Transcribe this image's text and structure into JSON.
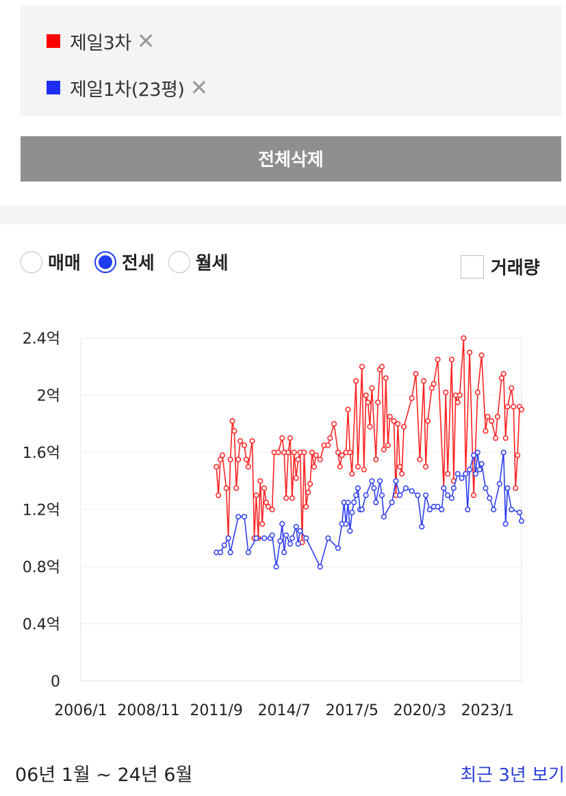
{
  "compare_list": {
    "items": [
      {
        "label": "제일3차",
        "color": "#ff0000",
        "remove_icon": "close-icon"
      },
      {
        "label": "제일1차(23평)",
        "color": "#1e2ef0",
        "remove_icon": "close-icon"
      }
    ],
    "remove_symbol": "✕"
  },
  "delete_all_label": "전체삭제",
  "trade_types": {
    "options": [
      "매매",
      "전세",
      "월세"
    ],
    "selected": "전세"
  },
  "volume_toggle": {
    "label": "거래량",
    "checked": false
  },
  "chart_data": {
    "type": "line",
    "title": "",
    "xlabel": "",
    "ylabel": "",
    "x_ticks": [
      "2006/1",
      "2008/11",
      "2011/9",
      "2014/7",
      "2017/5",
      "2020/3",
      "2023/1"
    ],
    "y_ticks": [
      "0",
      "0.4억",
      "0.8억",
      "1.2억",
      "1.6억",
      "2억",
      "2.4억"
    ],
    "ylim": [
      0,
      2.4
    ],
    "xlim": [
      "2006/1",
      "2024/6"
    ],
    "grid": true,
    "series": [
      {
        "name": "제일3차",
        "color": "#ff2020",
        "points": [
          [
            "2011/9",
            1.5
          ],
          [
            "2011/10",
            1.3
          ],
          [
            "2011/11",
            1.55
          ],
          [
            "2011/12",
            1.58
          ],
          [
            "2012/2",
            1.35
          ],
          [
            "2012/3",
            1.0
          ],
          [
            "2012/4",
            1.55
          ],
          [
            "2012/5",
            1.82
          ],
          [
            "2012/6",
            1.75
          ],
          [
            "2012/7",
            1.35
          ],
          [
            "2012/8",
            1.55
          ],
          [
            "2012/9",
            1.68
          ],
          [
            "2012/11",
            1.65
          ],
          [
            "2012/12",
            1.55
          ],
          [
            "2013/1",
            1.5
          ],
          [
            "2013/3",
            1.68
          ],
          [
            "2013/4",
            1.0
          ],
          [
            "2013/5",
            1.3
          ],
          [
            "2013/6",
            1.0
          ],
          [
            "2013/7",
            1.4
          ],
          [
            "2013/8",
            1.1
          ],
          [
            "2013/9",
            1.35
          ],
          [
            "2013/10",
            1.25
          ],
          [
            "2013/11",
            1.22
          ],
          [
            "2014/1",
            1.2
          ],
          [
            "2014/2",
            1.6
          ],
          [
            "2014/4",
            1.6
          ],
          [
            "2014/6",
            1.7
          ],
          [
            "2014/7",
            1.6
          ],
          [
            "2014/8",
            1.28
          ],
          [
            "2014/9",
            1.6
          ],
          [
            "2014/10",
            1.7
          ],
          [
            "2014/11",
            1.28
          ],
          [
            "2014/12",
            1.6
          ],
          [
            "2015/1",
            1.42
          ],
          [
            "2015/2",
            1.55
          ],
          [
            "2015/3",
            1.6
          ],
          [
            "2015/4",
            0.97
          ],
          [
            "2015/5",
            1.6
          ],
          [
            "2015/6",
            1.22
          ],
          [
            "2015/7",
            1.32
          ],
          [
            "2015/8",
            1.38
          ],
          [
            "2015/9",
            1.6
          ],
          [
            "2015/10",
            1.5
          ],
          [
            "2015/11",
            1.58
          ],
          [
            "2016/1",
            1.55
          ],
          [
            "2016/3",
            1.65
          ],
          [
            "2016/5",
            1.65
          ],
          [
            "2016/6",
            1.7
          ],
          [
            "2016/8",
            1.8
          ],
          [
            "2016/10",
            1.6
          ],
          [
            "2016/11",
            1.5
          ],
          [
            "2016/12",
            1.58
          ],
          [
            "2017/2",
            1.6
          ],
          [
            "2017/3",
            1.9
          ],
          [
            "2017/4",
            1.6
          ],
          [
            "2017/5",
            1.45
          ],
          [
            "2017/7",
            2.1
          ],
          [
            "2017/8",
            1.5
          ],
          [
            "2017/10",
            2.2
          ],
          [
            "2017/11",
            1.48
          ],
          [
            "2017/12",
            2.0
          ],
          [
            "2018/1",
            1.95
          ],
          [
            "2018/2",
            1.78
          ],
          [
            "2018/3",
            2.05
          ],
          [
            "2018/5",
            1.55
          ],
          [
            "2018/6",
            1.95
          ],
          [
            "2018/7",
            2.18
          ],
          [
            "2018/8",
            2.2
          ],
          [
            "2018/9",
            1.62
          ],
          [
            "2018/10",
            2.12
          ],
          [
            "2018/11",
            1.65
          ],
          [
            "2018/12",
            1.85
          ],
          [
            "2019/2",
            1.82
          ],
          [
            "2019/3",
            1.3
          ],
          [
            "2019/4",
            1.8
          ],
          [
            "2019/5",
            1.5
          ],
          [
            "2019/6",
            1.45
          ],
          [
            "2019/7",
            1.78
          ],
          [
            "2019/11",
            1.98
          ],
          [
            "2020/1",
            2.15
          ],
          [
            "2020/3",
            1.55
          ],
          [
            "2020/5",
            2.1
          ],
          [
            "2020/6",
            1.5
          ],
          [
            "2020/7",
            1.82
          ],
          [
            "2020/9",
            2.05
          ],
          [
            "2020/10",
            2.08
          ],
          [
            "2020/12",
            2.25
          ],
          [
            "2021/3",
            1.35
          ],
          [
            "2021/4",
            2.02
          ],
          [
            "2021/5",
            1.45
          ],
          [
            "2021/7",
            2.25
          ],
          [
            "2021/8",
            1.4
          ],
          [
            "2021/9",
            2.0
          ],
          [
            "2021/10",
            1.95
          ],
          [
            "2021/11",
            2.0
          ],
          [
            "2022/1",
            2.4
          ],
          [
            "2022/2",
            1.45
          ],
          [
            "2022/4",
            2.3
          ],
          [
            "2022/6",
            1.3
          ],
          [
            "2022/8",
            2.02
          ],
          [
            "2022/10",
            2.28
          ],
          [
            "2022/12",
            1.75
          ],
          [
            "2023/1",
            1.85
          ],
          [
            "2023/3",
            1.82
          ],
          [
            "2023/5",
            1.7
          ],
          [
            "2023/6",
            1.85
          ],
          [
            "2023/8",
            2.12
          ],
          [
            "2023/9",
            2.15
          ],
          [
            "2023/10",
            1.7
          ],
          [
            "2023/11",
            1.92
          ],
          [
            "2024/1",
            2.05
          ],
          [
            "2024/2",
            1.92
          ],
          [
            "2024/3",
            1.35
          ],
          [
            "2024/4",
            1.58
          ],
          [
            "2024/5",
            1.92
          ],
          [
            "2024/6",
            1.9
          ]
        ]
      },
      {
        "name": "제일1차(23평)",
        "color": "#2a3cf0",
        "points": [
          [
            "2011/9",
            0.9
          ],
          [
            "2011/11",
            0.9
          ],
          [
            "2012/1",
            0.95
          ],
          [
            "2012/3",
            1.0
          ],
          [
            "2012/4",
            0.9
          ],
          [
            "2012/8",
            1.15
          ],
          [
            "2012/11",
            1.15
          ],
          [
            "2013/1",
            0.9
          ],
          [
            "2013/5",
            1.0
          ],
          [
            "2013/9",
            1.0
          ],
          [
            "2013/12",
            1.0
          ],
          [
            "2014/1",
            1.02
          ],
          [
            "2014/3",
            0.8
          ],
          [
            "2014/5",
            0.98
          ],
          [
            "2014/6",
            1.1
          ],
          [
            "2014/7",
            0.9
          ],
          [
            "2014/8",
            1.02
          ],
          [
            "2014/10",
            0.96
          ],
          [
            "2014/11",
            1.0
          ],
          [
            "2015/1",
            1.08
          ],
          [
            "2015/2",
            0.96
          ],
          [
            "2015/3",
            1.05
          ],
          [
            "2015/6",
            1.0
          ],
          [
            "2016/1",
            0.8
          ],
          [
            "2016/5",
            1.0
          ],
          [
            "2016/10",
            0.93
          ],
          [
            "2016/12",
            1.1
          ],
          [
            "2017/1",
            1.25
          ],
          [
            "2017/2",
            1.1
          ],
          [
            "2017/3",
            1.25
          ],
          [
            "2017/4",
            1.05
          ],
          [
            "2017/5",
            1.18
          ],
          [
            "2017/6",
            1.25
          ],
          [
            "2017/7",
            1.3
          ],
          [
            "2017/8",
            1.35
          ],
          [
            "2017/9",
            1.2
          ],
          [
            "2017/10",
            1.2
          ],
          [
            "2017/12",
            1.3
          ],
          [
            "2018/3",
            1.4
          ],
          [
            "2018/4",
            1.35
          ],
          [
            "2018/5",
            1.25
          ],
          [
            "2018/7",
            1.4
          ],
          [
            "2018/8",
            1.3
          ],
          [
            "2018/9",
            1.15
          ],
          [
            "2019/1",
            1.25
          ],
          [
            "2019/3",
            1.4
          ],
          [
            "2019/5",
            1.3
          ],
          [
            "2019/8",
            1.35
          ],
          [
            "2019/11",
            1.33
          ],
          [
            "2020/2",
            1.3
          ],
          [
            "2020/4",
            1.08
          ],
          [
            "2020/6",
            1.3
          ],
          [
            "2020/8",
            1.2
          ],
          [
            "2020/10",
            1.22
          ],
          [
            "2020/12",
            1.22
          ],
          [
            "2021/2",
            1.2
          ],
          [
            "2021/3",
            1.35
          ],
          [
            "2021/5",
            1.3
          ],
          [
            "2021/7",
            1.28
          ],
          [
            "2021/8",
            1.35
          ],
          [
            "2021/10",
            1.45
          ],
          [
            "2021/12",
            1.42
          ],
          [
            "2022/2",
            1.45
          ],
          [
            "2022/3",
            1.2
          ],
          [
            "2022/4",
            1.48
          ],
          [
            "2022/6",
            1.58
          ],
          [
            "2022/7",
            1.45
          ],
          [
            "2022/8",
            1.6
          ],
          [
            "2022/9",
            1.48
          ],
          [
            "2022/10",
            1.52
          ],
          [
            "2022/12",
            1.35
          ],
          [
            "2023/2",
            1.28
          ],
          [
            "2023/4",
            1.2
          ],
          [
            "2023/7",
            1.38
          ],
          [
            "2023/9",
            1.6
          ],
          [
            "2023/10",
            1.1
          ],
          [
            "2023/11",
            1.35
          ],
          [
            "2024/1",
            1.2
          ],
          [
            "2024/5",
            1.18
          ],
          [
            "2024/6",
            1.12
          ]
        ]
      }
    ]
  },
  "date_range_label": "06년 1월 ~ 24년 6월",
  "recent_link_label": "최근 3년 보기"
}
